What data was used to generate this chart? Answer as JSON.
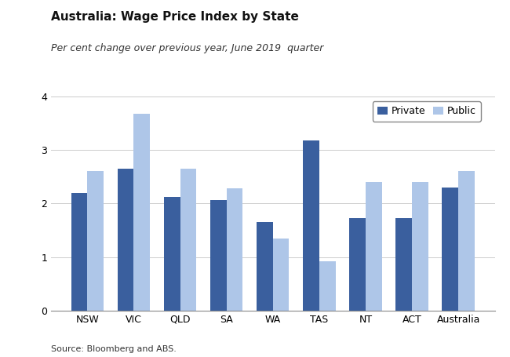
{
  "title": "Australia: Wage Price Index by State",
  "subtitle": "Per cent change over previous year, June 2019  quarter",
  "source": "Source: Bloomberg and ABS.",
  "categories": [
    "NSW",
    "VIC",
    "QLD",
    "SA",
    "WA",
    "TAS",
    "NT",
    "ACT",
    "Australia"
  ],
  "private": [
    2.2,
    2.65,
    2.12,
    2.07,
    1.65,
    3.18,
    1.73,
    1.73,
    2.3
  ],
  "public": [
    2.6,
    3.68,
    2.65,
    2.28,
    1.35,
    0.92,
    2.4,
    2.4,
    2.6
  ],
  "private_color": "#3a5f9e",
  "public_color": "#aec6e8",
  "ylim": [
    0,
    4
  ],
  "yticks": [
    0,
    1,
    2,
    3,
    4
  ],
  "bar_width": 0.35,
  "legend_labels": [
    "Private",
    "Public"
  ],
  "title_fontsize": 11,
  "subtitle_fontsize": 9,
  "source_fontsize": 8,
  "tick_fontsize": 9,
  "legend_fontsize": 9,
  "background_color": "#ffffff"
}
